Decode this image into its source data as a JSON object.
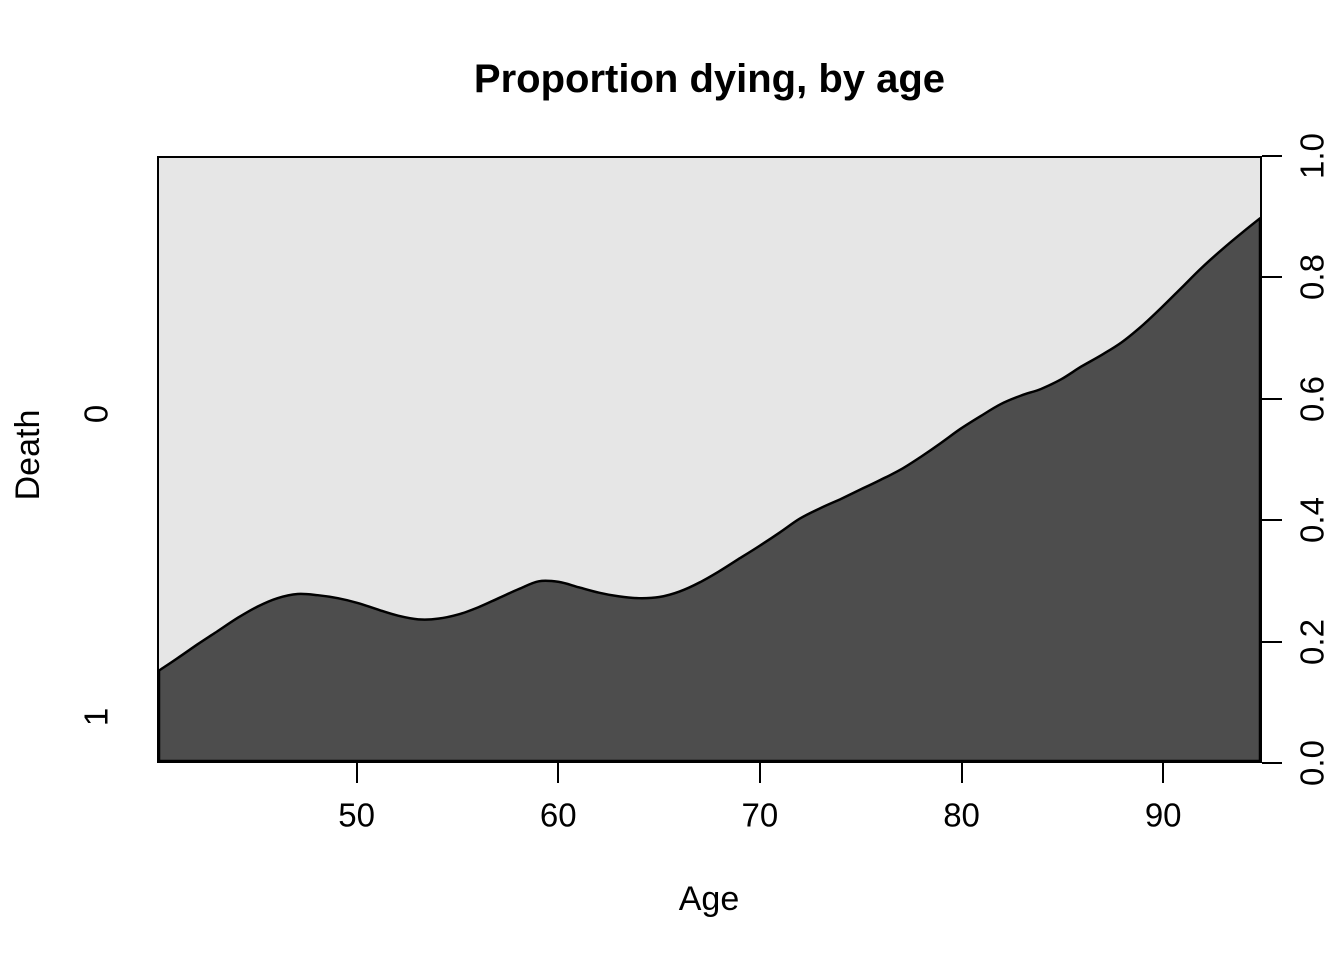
{
  "chart_data": {
    "type": "area",
    "title": "Proportion dying, by age",
    "xlabel": "Age",
    "ylabel": "Death",
    "category_labels": [
      "0",
      "1"
    ],
    "legend": "none",
    "grid": false,
    "xlim": [
      40.1,
      94.9
    ],
    "ylim": [
      0.0,
      1.0
    ],
    "x_ticks": [
      {
        "value": 50,
        "label": "50"
      },
      {
        "value": 60,
        "label": "60"
      },
      {
        "value": 70,
        "label": "70"
      },
      {
        "value": 80,
        "label": "80"
      },
      {
        "value": 90,
        "label": "90"
      }
    ],
    "y_ticks_right": [
      {
        "value": 0.0,
        "label": "0.0"
      },
      {
        "value": 0.2,
        "label": "0.2"
      },
      {
        "value": 0.4,
        "label": "0.4"
      },
      {
        "value": 0.6,
        "label": "0.6"
      },
      {
        "value": 0.8,
        "label": "0.8"
      },
      {
        "value": 1.0,
        "label": "1.0"
      }
    ],
    "x": [
      40.1,
      41,
      42,
      43,
      44,
      45,
      46,
      47,
      48,
      49,
      50,
      51,
      52,
      53,
      54,
      55,
      56,
      57,
      58,
      59,
      60,
      61,
      62,
      63,
      64,
      65,
      66,
      67,
      68,
      69,
      70,
      71,
      72,
      73,
      74,
      75,
      76,
      77,
      78,
      79,
      80,
      81,
      82,
      83,
      84,
      85,
      86,
      87,
      88,
      89,
      90,
      91,
      92,
      93,
      94,
      94.9
    ],
    "series": [
      {
        "name": "Proportion dying (Death = 1)",
        "values": [
          0.15,
          0.17,
          0.193,
          0.215,
          0.237,
          0.256,
          0.27,
          0.277,
          0.275,
          0.27,
          0.262,
          0.251,
          0.241,
          0.235,
          0.236,
          0.243,
          0.255,
          0.27,
          0.285,
          0.298,
          0.297,
          0.288,
          0.279,
          0.273,
          0.27,
          0.272,
          0.281,
          0.296,
          0.315,
          0.336,
          0.357,
          0.379,
          0.402,
          0.419,
          0.434,
          0.45,
          0.466,
          0.483,
          0.504,
          0.527,
          0.551,
          0.572,
          0.592,
          0.606,
          0.617,
          0.633,
          0.654,
          0.673,
          0.694,
          0.721,
          0.752,
          0.785,
          0.818,
          0.848,
          0.876,
          0.9
        ]
      }
    ],
    "colors": {
      "dying_fill": "#4D4D4D",
      "surviving_fill": "#E6E6E6",
      "boundary_line": "#000000",
      "axis": "#000000"
    }
  }
}
